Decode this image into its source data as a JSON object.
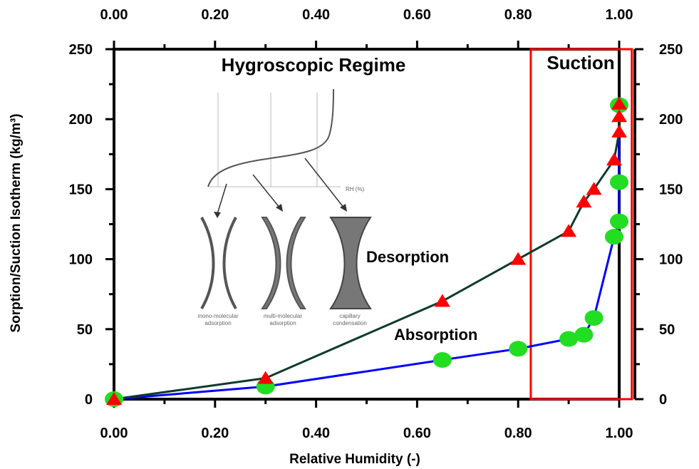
{
  "chart_data": {
    "type": "line",
    "xlabel": "Relative Humidity (-)",
    "ylabel": "Sorption/Suction Isotherm (kg/m³)",
    "xlim": [
      0,
      1.0
    ],
    "ylim": [
      0,
      250
    ],
    "x_ticks": [
      "0.00",
      "0.20",
      "0.40",
      "0.60",
      "0.80",
      "1.00"
    ],
    "y_ticks": [
      "0",
      "50",
      "100",
      "150",
      "200",
      "250"
    ],
    "series": [
      {
        "name": "Desorption",
        "color": "#0d3b2e",
        "marker": "triangle",
        "marker_color": "#ff0000",
        "x": [
          0.0,
          0.3,
          0.65,
          0.8,
          0.9,
          0.93,
          0.95,
          0.99,
          1.0,
          1.0,
          1.0
        ],
        "y": [
          0,
          15,
          70,
          100,
          120,
          141,
          150,
          171,
          191,
          202,
          211
        ]
      },
      {
        "name": "Absorption",
        "color": "#0000ff",
        "marker": "circle",
        "marker_color": "#22dd22",
        "x": [
          0.0,
          0.3,
          0.65,
          0.8,
          0.9,
          0.93,
          0.95,
          0.99,
          1.0,
          1.0,
          1.0
        ],
        "y": [
          0,
          9,
          28,
          36,
          43,
          46,
          58,
          116,
          127,
          155,
          210
        ]
      }
    ],
    "annotations": {
      "regime": "Hygroscopic Regime",
      "suction": "Suction",
      "desorption": "Desorption",
      "absorption": "Absorption"
    },
    "suction_region": {
      "x_from": 0.825,
      "x_to": 1.025,
      "color": "#ff0000"
    },
    "grid": false
  },
  "inset": {
    "rh_label": "RH (%)",
    "captions": [
      [
        "mono-molecular",
        "adsorption"
      ],
      [
        "multi-molecular",
        "adsorption"
      ],
      [
        "capillary",
        "condensation"
      ]
    ]
  }
}
